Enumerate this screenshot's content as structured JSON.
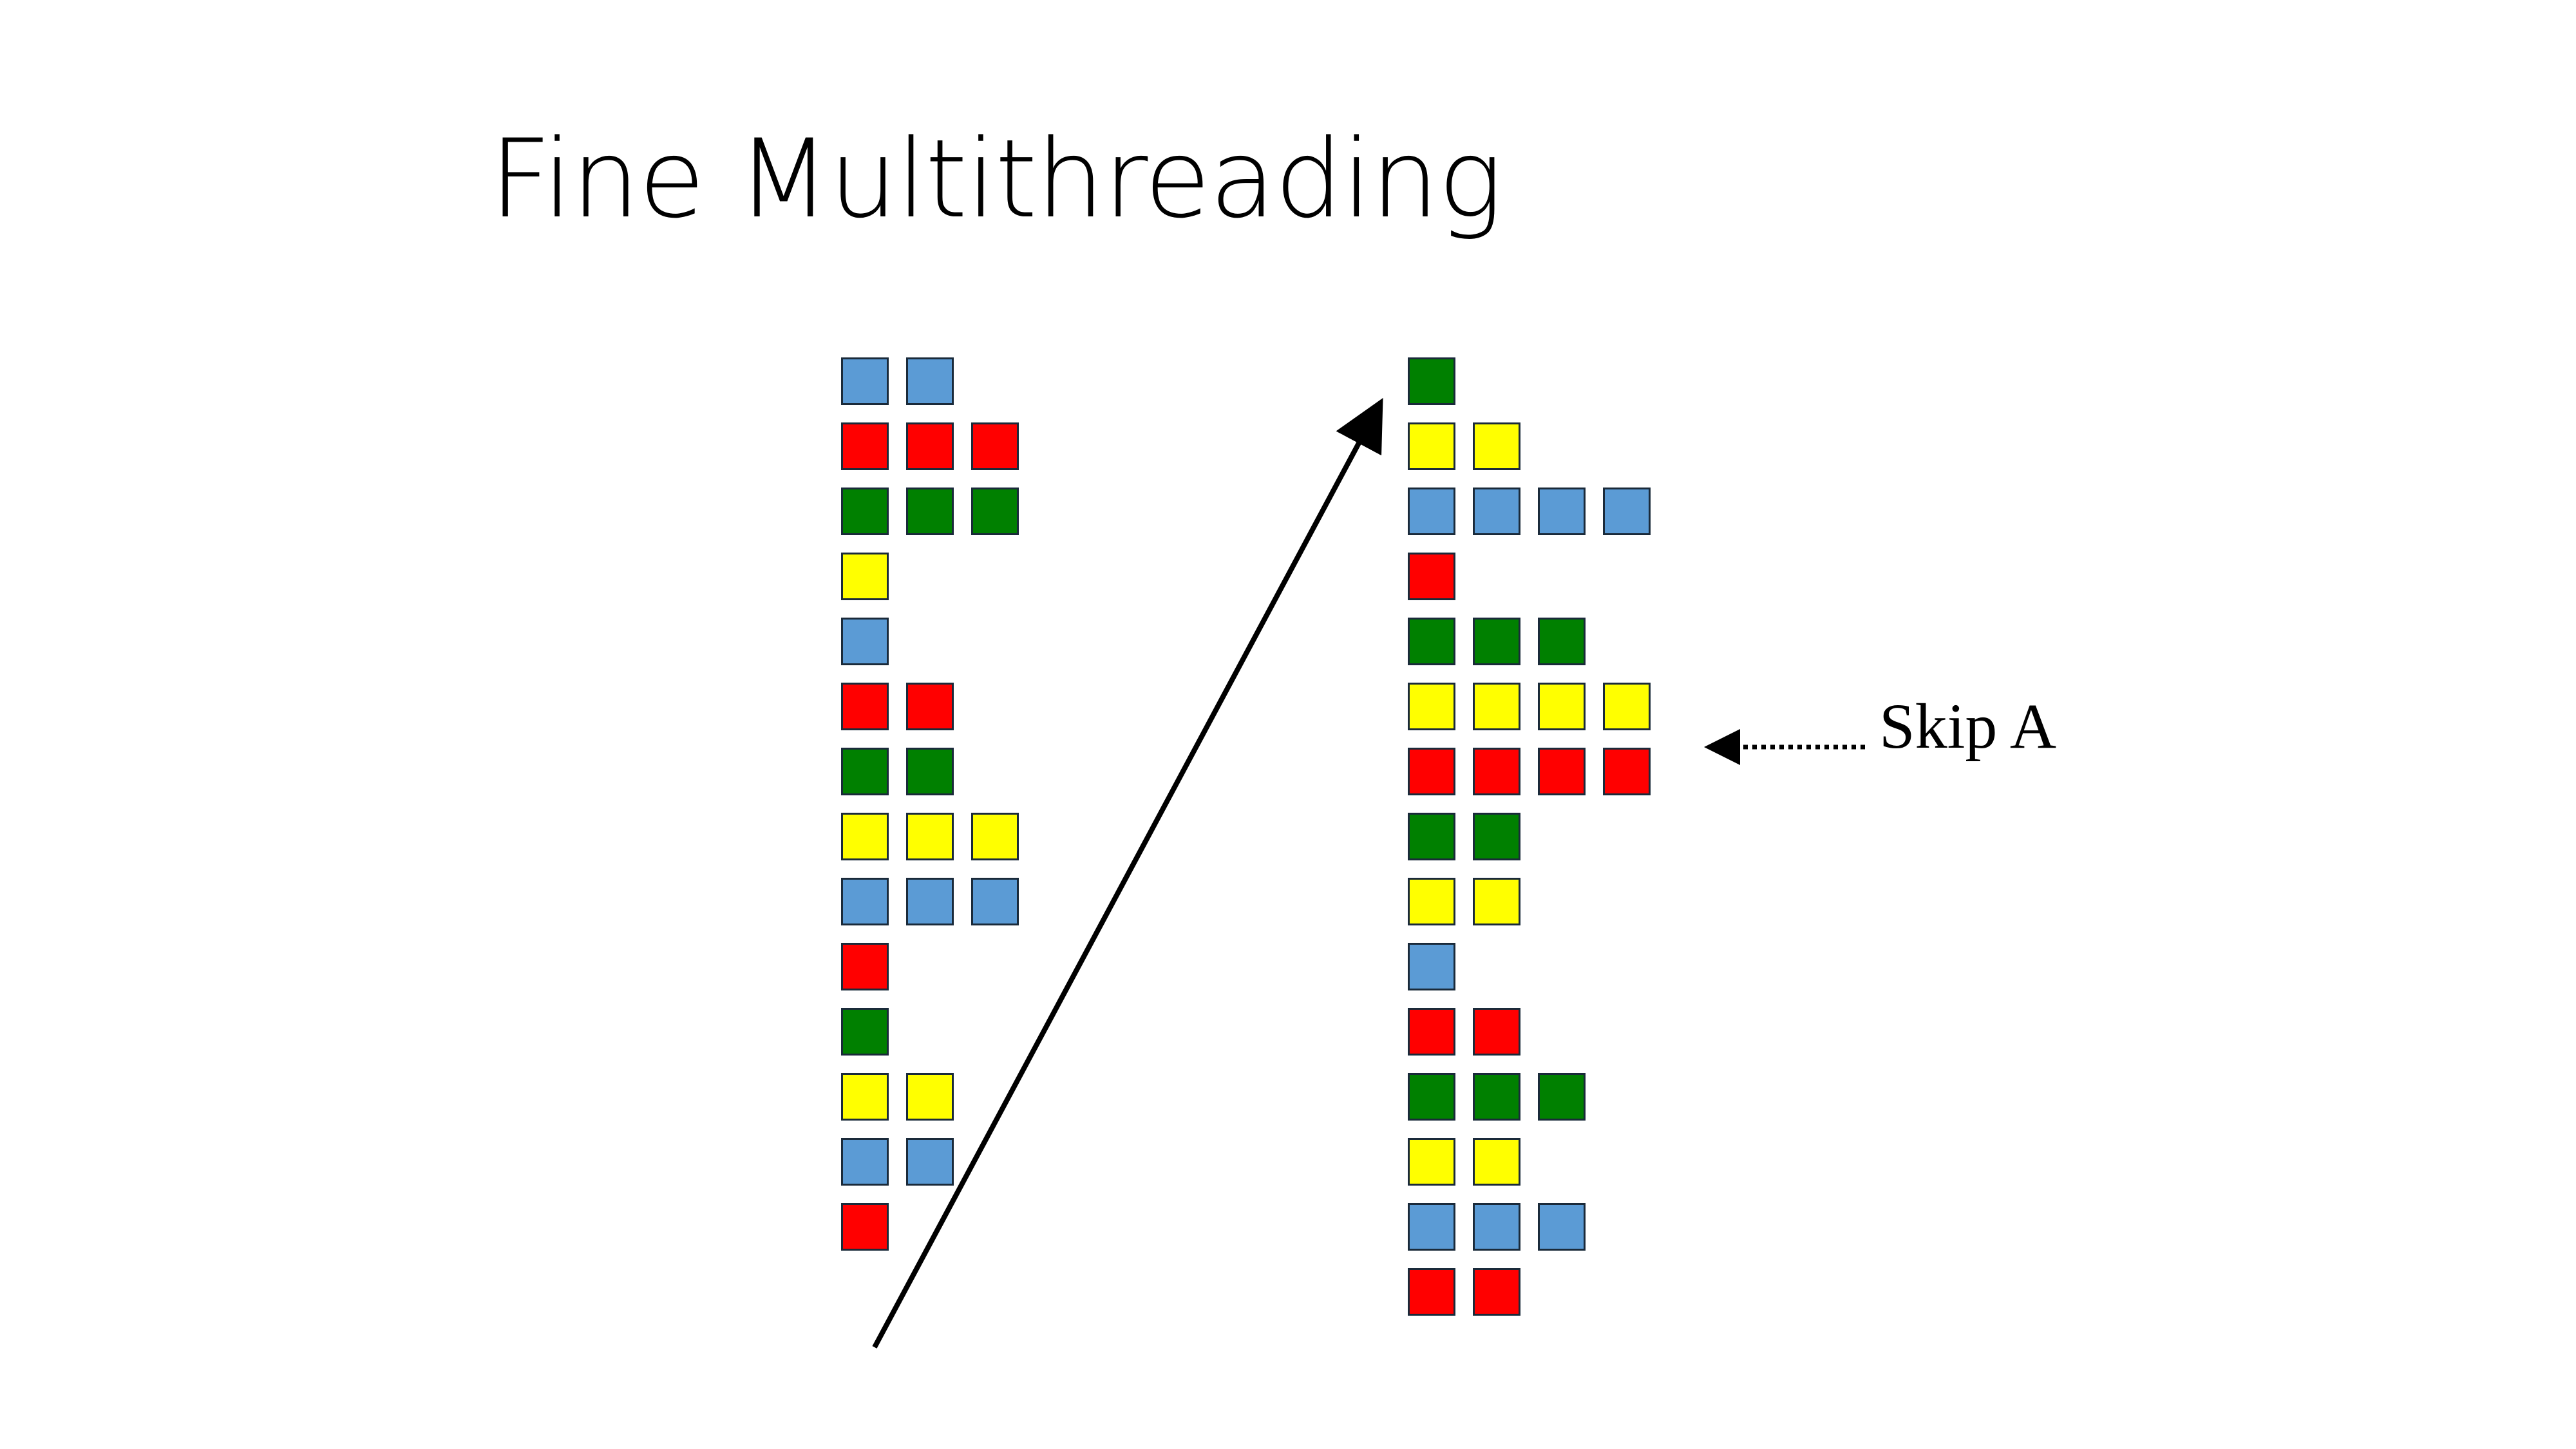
{
  "title": "Fine Multithreading",
  "colors": {
    "blue": "#5b9bd5",
    "red": "#ff0000",
    "green": "#008000",
    "yellow": "#ffff00"
  },
  "left_column": [
    {
      "color": "blue",
      "count": 2
    },
    {
      "color": "red",
      "count": 3
    },
    {
      "color": "green",
      "count": 3
    },
    {
      "color": "yellow",
      "count": 1
    },
    {
      "color": "blue",
      "count": 1
    },
    {
      "color": "red",
      "count": 2
    },
    {
      "color": "green",
      "count": 2
    },
    {
      "color": "yellow",
      "count": 3
    },
    {
      "color": "blue",
      "count": 3
    },
    {
      "color": "red",
      "count": 1
    },
    {
      "color": "green",
      "count": 1
    },
    {
      "color": "yellow",
      "count": 2
    },
    {
      "color": "blue",
      "count": 2
    },
    {
      "color": "red",
      "count": 1
    }
  ],
  "right_column": [
    {
      "color": "green",
      "count": 1
    },
    {
      "color": "yellow",
      "count": 2
    },
    {
      "color": "blue",
      "count": 4
    },
    {
      "color": "red",
      "count": 1
    },
    {
      "color": "green",
      "count": 3
    },
    {
      "color": "yellow",
      "count": 4
    },
    {
      "color": "red",
      "count": 4
    },
    {
      "color": "green",
      "count": 2
    },
    {
      "color": "yellow",
      "count": 2
    },
    {
      "color": "blue",
      "count": 1
    },
    {
      "color": "red",
      "count": 2
    },
    {
      "color": "green",
      "count": 3
    },
    {
      "color": "yellow",
      "count": 2
    },
    {
      "color": "blue",
      "count": 3
    },
    {
      "color": "red",
      "count": 2
    }
  ],
  "annotation": {
    "label": "Skip A",
    "row_index": 6
  }
}
